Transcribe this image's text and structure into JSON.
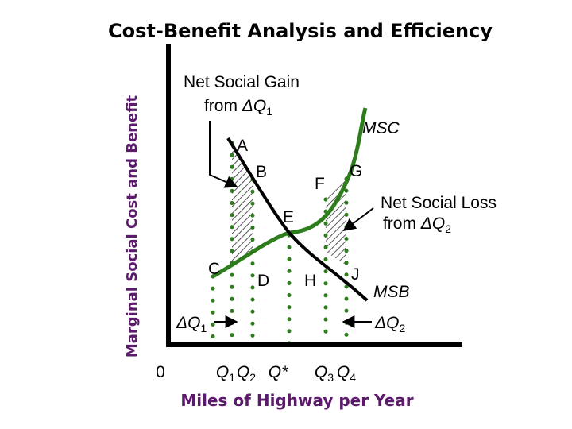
{
  "chart_data": {
    "type": "line",
    "title": "Cost-Benefit Analysis and Efficiency",
    "xlabel": "Miles of Highway per Year",
    "ylabel": "Marginal Social Cost and Benefit",
    "origin_label": "0",
    "series": [
      {
        "name": "MSC",
        "color": "#2e7d1c"
      },
      {
        "name": "MSB",
        "color": "#000000"
      }
    ],
    "x_ticks": [
      "Q1",
      "Q2",
      "Q*",
      "Q3",
      "Q4"
    ],
    "points": [
      "A",
      "B",
      "C",
      "D",
      "E",
      "F",
      "G",
      "H",
      "J"
    ],
    "annotations": {
      "gain": {
        "line1": "Net Social Gain",
        "line2_prefix": "from ",
        "line2_var": "ΔQ",
        "line2_sub": "1"
      },
      "loss": {
        "line1": "Net Social Loss",
        "line2_prefix": "from ",
        "line2_var": "ΔQ",
        "line2_sub": "2"
      },
      "delta_q1": {
        "var": "ΔQ",
        "sub": "1"
      },
      "delta_q2": {
        "var": "ΔQ",
        "sub": "2"
      }
    }
  }
}
